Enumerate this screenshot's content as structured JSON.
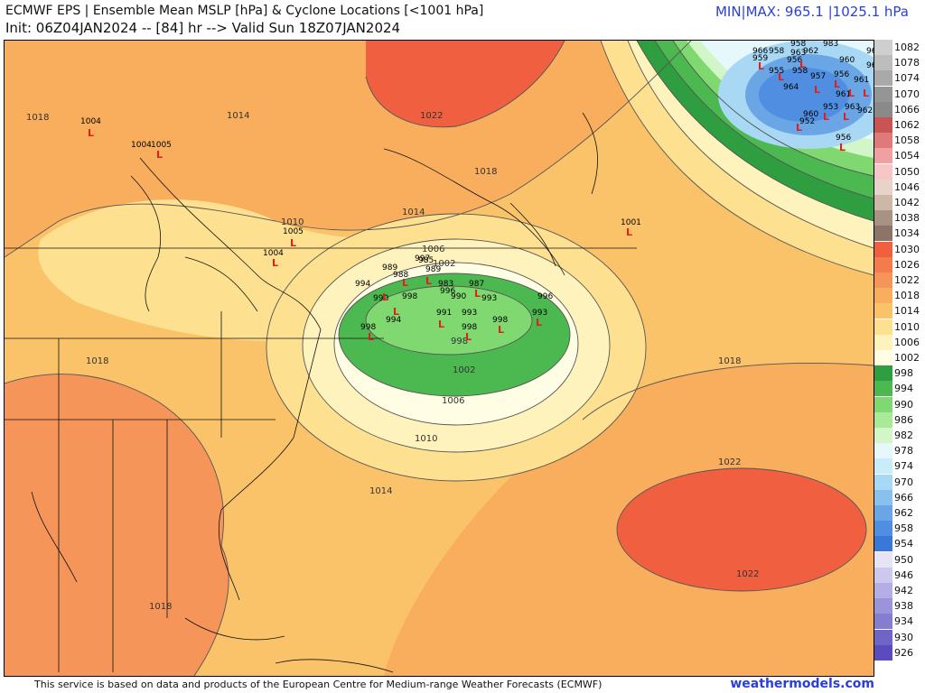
{
  "header": {
    "title_line1": "ECMWF EPS | Ensemble Mean MSLP [hPa] & Cyclone Locations [<1001 hPa]",
    "title_line2": "Init: 06Z04JAN2024 -- [84] hr --> Valid Sun 18Z07JAN2024",
    "minmax": "MIN|MAX: 965.1 |1025.1 hPa"
  },
  "footer": {
    "credit": "This service is based on data and products of the European Centre for Medium-range Weather Forecasts (ECMWF)",
    "brand": "weathermodels.com"
  },
  "legend": {
    "entries": [
      {
        "label": "1082",
        "color": "#cfcfcf"
      },
      {
        "label": "1078",
        "color": "#bdbdbd"
      },
      {
        "label": "1074",
        "color": "#a9a9a9"
      },
      {
        "label": "1070",
        "color": "#959595"
      },
      {
        "label": "1066",
        "color": "#8a8a8a"
      },
      {
        "label": "1062",
        "color": "#c95454"
      },
      {
        "label": "1058",
        "color": "#e07a7a"
      },
      {
        "label": "1054",
        "color": "#f0a0a0"
      },
      {
        "label": "1050",
        "color": "#f7c6c6"
      },
      {
        "label": "1046",
        "color": "#e8d3c8"
      },
      {
        "label": "1042",
        "color": "#cdb8a8"
      },
      {
        "label": "1038",
        "color": "#a89282"
      },
      {
        "label": "1034",
        "color": "#8c7468"
      },
      {
        "label": "1030",
        "color": "#f06040"
      },
      {
        "label": "1026",
        "color": "#f47c4c"
      },
      {
        "label": "1022",
        "color": "#f6955a"
      },
      {
        "label": "1018",
        "color": "#f8ae5c"
      },
      {
        "label": "1014",
        "color": "#fac36a"
      },
      {
        "label": "1010",
        "color": "#fde090"
      },
      {
        "label": "1006",
        "color": "#fff3bd"
      },
      {
        "label": "1002",
        "color": "#fffde4"
      },
      {
        "label": "998",
        "color": "#2e9e40"
      },
      {
        "label": "994",
        "color": "#4cb850"
      },
      {
        "label": "990",
        "color": "#7fd870"
      },
      {
        "label": "986",
        "color": "#a8ea98"
      },
      {
        "label": "982",
        "color": "#d2f6c8"
      },
      {
        "label": "978",
        "color": "#e6f8fc"
      },
      {
        "label": "974",
        "color": "#c8ecf8"
      },
      {
        "label": "970",
        "color": "#a8d8f4"
      },
      {
        "label": "966",
        "color": "#88c0ee"
      },
      {
        "label": "962",
        "color": "#6aa6e6"
      },
      {
        "label": "958",
        "color": "#4f8ee0"
      },
      {
        "label": "954",
        "color": "#3a78d8"
      },
      {
        "label": "950",
        "color": "#e6e4f6"
      },
      {
        "label": "946",
        "color": "#ccc8ee"
      },
      {
        "label": "942",
        "color": "#b4aee4"
      },
      {
        "label": "938",
        "color": "#9c94da"
      },
      {
        "label": "934",
        "color": "#867cd0"
      },
      {
        "label": "930",
        "color": "#7064c6"
      },
      {
        "label": "926",
        "color": "#5a4cbc"
      }
    ]
  },
  "map": {
    "isobar_labels": [
      "1018",
      "1014",
      "1022",
      "1018",
      "1010",
      "1014",
      "1006",
      "1002",
      "998",
      "1002",
      "1006",
      "1010",
      "1014",
      "1018",
      "1018",
      "1022",
      "1022",
      "1018"
    ],
    "station_values": [
      "1004",
      "1004",
      "1005",
      "1005",
      "1004",
      "1001"
    ],
    "low_center_values": [
      "997",
      "985",
      "989",
      "989",
      "988",
      "983",
      "987",
      "994",
      "996",
      "990",
      "993",
      "991",
      "993",
      "996",
      "998",
      "998",
      "998",
      "994",
      "993",
      "990",
      "998"
    ],
    "ne_low_values": [
      "966",
      "958",
      "958",
      "959",
      "963",
      "962",
      "983",
      "961",
      "963",
      "955",
      "956",
      "958",
      "957",
      "964",
      "960",
      "956",
      "952",
      "961",
      "963",
      "962",
      "960",
      "953",
      "961",
      "956"
    ],
    "marker_symbol": "L"
  }
}
